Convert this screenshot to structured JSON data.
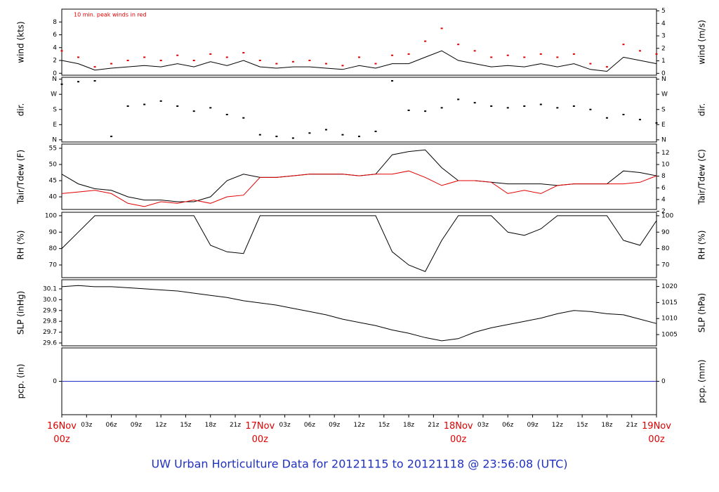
{
  "chart_data": [
    {
      "type": "line",
      "ylabel": "wind (kts)",
      "y2label": "wind (m/s)",
      "annotation": "10 min. peak winds in red",
      "x": [
        0,
        2,
        4,
        6,
        8,
        10,
        12,
        14,
        16,
        18,
        20,
        22,
        24,
        26,
        28,
        30,
        32,
        34,
        36,
        38,
        40,
        42,
        44,
        46,
        48,
        50,
        52,
        54,
        56,
        58,
        60,
        62,
        64,
        66,
        68,
        70,
        72
      ],
      "xlim": [
        0,
        72
      ],
      "ylim": [
        -0.3,
        10
      ],
      "yticks": [
        0,
        2,
        4,
        6,
        8
      ],
      "y2lim": [
        -0.15,
        5.14
      ],
      "y2ticks": [
        0,
        1,
        2,
        3,
        4,
        5
      ],
      "series": [
        {
          "color": "#000000",
          "style": "line",
          "values": [
            2,
            1.5,
            0.5,
            0.8,
            1,
            1.2,
            1,
            1.5,
            1,
            1.8,
            1.2,
            2,
            1,
            0.8,
            1,
            1,
            0.8,
            0.6,
            1.2,
            0.8,
            1.5,
            1.5,
            2.5,
            3.5,
            2,
            1.5,
            1,
            1.2,
            1,
            1.5,
            1,
            1.5,
            0.6,
            0.3,
            2.5,
            2,
            1.5
          ]
        },
        {
          "color": "#e00000",
          "style": "dots",
          "values": [
            3.5,
            2.5,
            1,
            1.5,
            2,
            2.5,
            2,
            2.8,
            2,
            3,
            2.5,
            3.2,
            2,
            1.5,
            1.8,
            2,
            1.5,
            1.2,
            2.5,
            1.5,
            2.8,
            3,
            5,
            7,
            4.5,
            3.5,
            2.5,
            2.8,
            2.5,
            3,
            2.5,
            3,
            1.5,
            1,
            4.5,
            3.5,
            3
          ]
        }
      ]
    },
    {
      "type": "line",
      "ylabel": "dir.",
      "y2label": "dir.",
      "x": [
        0,
        2,
        4,
        6,
        8,
        10,
        12,
        14,
        16,
        18,
        20,
        22,
        24,
        26,
        28,
        30,
        32,
        34,
        36,
        38,
        40,
        42,
        44,
        46,
        48,
        50,
        52,
        54,
        56,
        58,
        60,
        62,
        64,
        66,
        68,
        70,
        72
      ],
      "xlim": [
        0,
        72
      ],
      "ylim": [
        -13,
        371
      ],
      "yticks": [
        {
          "value": 0,
          "label": "N"
        },
        {
          "value": 90,
          "label": "E"
        },
        {
          "value": 180,
          "label": "S"
        },
        {
          "value": 270,
          "label": "W"
        },
        {
          "value": 360,
          "label": "N"
        }
      ],
      "y2lim": [
        -13,
        371
      ],
      "y2ticks": [
        {
          "value": 0,
          "label": "N"
        },
        {
          "value": 90,
          "label": "E"
        },
        {
          "value": 180,
          "label": "S"
        },
        {
          "value": 270,
          "label": "W"
        },
        {
          "value": 360,
          "label": "N"
        }
      ],
      "series": [
        {
          "color": "#000000",
          "style": "dots",
          "values": [
            330,
            345,
            350,
            20,
            200,
            210,
            230,
            200,
            170,
            190,
            150,
            130,
            30,
            20,
            10,
            40,
            60,
            30,
            20,
            50,
            350,
            175,
            170,
            190,
            240,
            220,
            200,
            190,
            200,
            210,
            190,
            200,
            180,
            130,
            150,
            120,
            100
          ]
        }
      ]
    },
    {
      "type": "line",
      "ylabel": "Tair/Tdew (F)",
      "y2label": "Tair/Tdew (C)",
      "x": [
        0,
        2,
        4,
        6,
        8,
        10,
        12,
        14,
        16,
        18,
        20,
        22,
        24,
        26,
        28,
        30,
        32,
        34,
        36,
        38,
        40,
        42,
        44,
        46,
        48,
        50,
        52,
        54,
        56,
        58,
        60,
        62,
        64,
        66,
        68,
        70,
        72
      ],
      "xlim": [
        0,
        72
      ],
      "ylim": [
        36.1,
        56.3
      ],
      "yticks": [
        40,
        45,
        50,
        55
      ],
      "y2lim": [
        2.3,
        13.5
      ],
      "y2ticks": [
        2,
        4,
        6,
        8,
        10,
        12
      ],
      "series": [
        {
          "color": "#000000",
          "style": "line",
          "values": [
            47,
            44,
            42.5,
            42,
            40,
            39,
            39,
            38.5,
            38.5,
            40,
            45,
            47,
            46,
            46,
            46.5,
            47,
            47,
            47,
            46.5,
            47,
            53,
            54,
            54.5,
            49,
            45,
            45,
            44.5,
            44,
            44,
            44,
            43.5,
            44,
            44,
            44,
            48,
            47.5,
            46.5
          ]
        },
        {
          "color": "#e00000",
          "style": "line",
          "values": [
            41,
            41.5,
            42,
            41,
            38,
            37,
            38.5,
            38,
            39,
            38,
            40,
            40.5,
            46,
            46,
            46.5,
            47,
            47,
            47,
            46.5,
            47,
            47,
            48,
            46,
            43.5,
            45,
            45,
            44.5,
            41,
            42,
            41,
            43.5,
            44,
            44,
            44,
            44,
            44.5,
            46.5
          ]
        }
      ]
    },
    {
      "type": "line",
      "ylabel": "RH (%)",
      "y2label": "RH (%)",
      "x": [
        0,
        2,
        4,
        6,
        8,
        10,
        12,
        14,
        16,
        18,
        20,
        22,
        24,
        26,
        28,
        30,
        32,
        34,
        36,
        38,
        40,
        42,
        44,
        46,
        48,
        50,
        52,
        54,
        56,
        58,
        60,
        62,
        64,
        66,
        68,
        70,
        72
      ],
      "xlim": [
        0,
        72
      ],
      "ylim": [
        62.3,
        102.1
      ],
      "yticks": [
        70,
        80,
        90,
        100
      ],
      "y2lim": [
        62.3,
        102.1
      ],
      "y2ticks": [
        70,
        80,
        90,
        100
      ],
      "series": [
        {
          "color": "#000000",
          "style": "line",
          "values": [
            80,
            90,
            100,
            100,
            100,
            100,
            100,
            100,
            100,
            82,
            78,
            77,
            100,
            100,
            100,
            100,
            100,
            100,
            100,
            100,
            78,
            70,
            66,
            85,
            100,
            100,
            100,
            90,
            88,
            92,
            100,
            100,
            100,
            100,
            85,
            82,
            97
          ]
        }
      ]
    },
    {
      "type": "line",
      "ylabel": "SLP (inHg)",
      "y2label": "SLP (hPa)",
      "x": [
        0,
        2,
        4,
        6,
        8,
        10,
        12,
        14,
        16,
        18,
        20,
        22,
        24,
        26,
        28,
        30,
        32,
        34,
        36,
        38,
        40,
        42,
        44,
        46,
        48,
        50,
        52,
        54,
        56,
        58,
        60,
        62,
        64,
        66,
        68,
        70,
        72
      ],
      "xlim": [
        0,
        72
      ],
      "ylim": [
        29.574,
        30.184
      ],
      "yticks": [
        29.6,
        29.7,
        29.8,
        29.9,
        {
          "value": 30,
          "label": "30.0"
        },
        30.1
      ],
      "y2lim": [
        1001.5,
        1022.1
      ],
      "y2ticks": [
        1005,
        1010,
        1015,
        1020
      ],
      "series": [
        {
          "color": "#000000",
          "style": "line",
          "values": [
            30.12,
            30.13,
            30.12,
            30.12,
            30.11,
            30.1,
            30.09,
            30.08,
            30.06,
            30.04,
            30.02,
            29.99,
            29.97,
            29.95,
            29.92,
            29.89,
            29.86,
            29.82,
            29.79,
            29.76,
            29.72,
            29.69,
            29.65,
            29.62,
            29.64,
            29.7,
            29.74,
            29.77,
            29.8,
            29.83,
            29.87,
            29.9,
            29.89,
            29.87,
            29.86,
            29.82,
            29.78
          ]
        }
      ]
    },
    {
      "type": "line",
      "ylabel": "pcp. (in)",
      "y2label": "pcp. (mm)",
      "x": [
        0,
        2,
        4,
        6,
        8,
        10,
        12,
        14,
        16,
        18,
        20,
        22,
        24,
        26,
        28,
        30,
        32,
        34,
        36,
        38,
        40,
        42,
        44,
        46,
        48,
        50,
        52,
        54,
        56,
        58,
        60,
        62,
        64,
        66,
        68,
        70,
        72
      ],
      "xlim": [
        0,
        72
      ],
      "ylim": [
        -1,
        1
      ],
      "yticks": [
        0
      ],
      "y2lim": [
        -1,
        1
      ],
      "y2ticks": [
        0
      ],
      "xticks": [
        {
          "value": 0,
          "label": "16Nov\n00z"
        },
        {
          "value": 3,
          "label": "03z"
        },
        {
          "value": 6,
          "label": "06z"
        },
        {
          "value": 9,
          "label": "09z"
        },
        {
          "value": 12,
          "label": "12z"
        },
        {
          "value": 15,
          "label": "15z"
        },
        {
          "value": 18,
          "label": "18z"
        },
        {
          "value": 21,
          "label": "21z"
        },
        {
          "value": 24,
          "label": "17Nov\n00z"
        },
        {
          "value": 27,
          "label": "03z"
        },
        {
          "value": 30,
          "label": "06z"
        },
        {
          "value": 33,
          "label": "09z"
        },
        {
          "value": 36,
          "label": "12z"
        },
        {
          "value": 39,
          "label": "15z"
        },
        {
          "value": 42,
          "label": "18z"
        },
        {
          "value": 45,
          "label": "21z"
        },
        {
          "value": 48,
          "label": "18Nov\n00z"
        },
        {
          "value": 51,
          "label": "03z"
        },
        {
          "value": 54,
          "label": "06z"
        },
        {
          "value": 57,
          "label": "09z"
        },
        {
          "value": 60,
          "label": "12z"
        },
        {
          "value": 63,
          "label": "15z"
        },
        {
          "value": 66,
          "label": "18z"
        },
        {
          "value": 69,
          "label": "21z"
        },
        {
          "value": 72,
          "label": "19Nov\n00z"
        }
      ],
      "series": [
        {
          "color": "#2030c0",
          "style": "line",
          "values": [
            0,
            0,
            0,
            0,
            0,
            0,
            0,
            0,
            0,
            0,
            0,
            0,
            0,
            0,
            0,
            0,
            0,
            0,
            0,
            0,
            0,
            0,
            0,
            0,
            0,
            0,
            0,
            0,
            0,
            0,
            0,
            0,
            0,
            0,
            0,
            0,
            0
          ]
        }
      ]
    }
  ],
  "title": "UW Urban Horticulture Data for 20121115  to  20121118 @ 23:56:08  (UTC)"
}
